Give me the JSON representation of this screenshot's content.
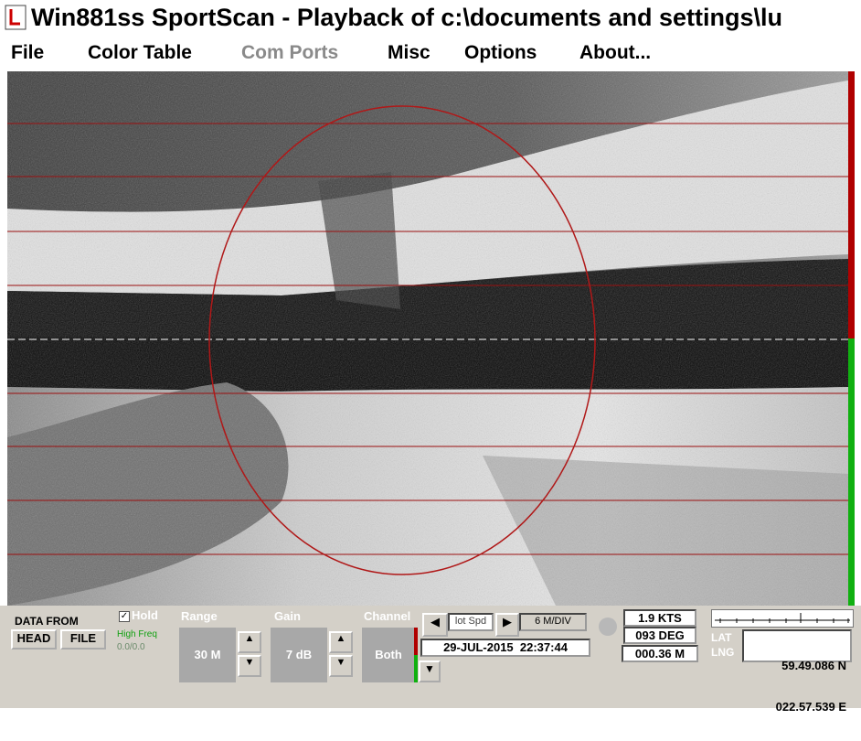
{
  "window": {
    "title": "Win881ss SportScan - Playback of c:\\documents and settings\\lu"
  },
  "menu": [
    "File",
    "Color Table",
    "Com Ports",
    "Misc",
    "Options",
    "About..."
  ],
  "panel": {
    "data_from": "DATA FROM",
    "head": "HEAD",
    "file": "FILE",
    "hold": "Hold",
    "high_freq": "High Freq",
    "freq_value": "0.0/0.0",
    "range_label": "Range",
    "range_value": "30 M",
    "gain_label": "Gain",
    "gain_value": "7 dB",
    "channel_label": "Channel",
    "channel_value": "Both",
    "plot_speed": "lot Spd",
    "scale": "6 M/DIV",
    "datetime": "29-JUL-2015  22:37:44",
    "speed": "1.9 KTS",
    "heading": "093 DEG",
    "distance": "000.36 M",
    "lat_label": "LAT",
    "lng_label": "LNG",
    "lat": "59.49.086 N",
    "lng": "022.57.539 E"
  }
}
